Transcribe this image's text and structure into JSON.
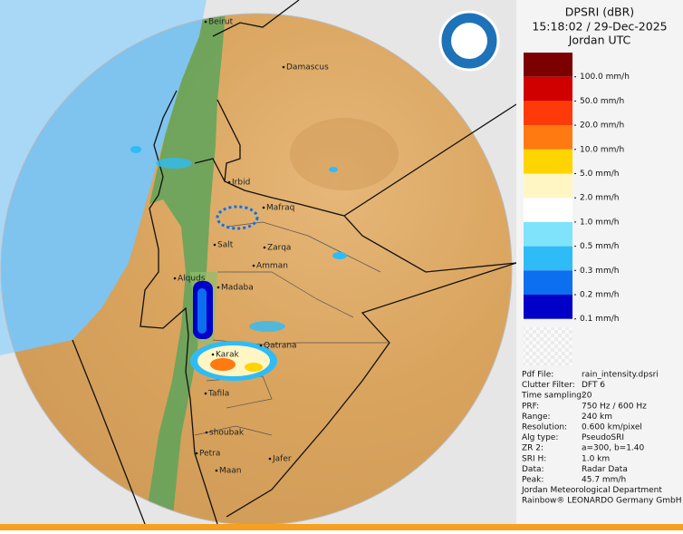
{
  "header": {
    "title": "DPSRI (dBR)",
    "timestamp": "15:18:02 / 29-Dec-2025",
    "region": "Jordan UTC"
  },
  "legend": [
    {
      "label": "100.0 mm/h",
      "color": "#7d0000"
    },
    {
      "label": "50.0 mm/h",
      "color": "#d00000"
    },
    {
      "label": "20.0 mm/h",
      "color": "#ff3a0a"
    },
    {
      "label": "10.0 mm/h",
      "color": "#ff7a10"
    },
    {
      "label": "5.0 mm/h",
      "color": "#ffd400"
    },
    {
      "label": "2.0 mm/h",
      "color": "#fff6c4"
    },
    {
      "label": "1.0 mm/h",
      "color": "#ffffff"
    },
    {
      "label": "0.5 mm/h",
      "color": "#7fe4fb"
    },
    {
      "label": "0.3 mm/h",
      "color": "#2fbcf6"
    },
    {
      "label": "0.2 mm/h",
      "color": "#0b6ff0"
    },
    {
      "label": "0.1 mm/h",
      "color": "#0000c8"
    }
  ],
  "info": [
    [
      "Pdf File:",
      "rain_intensity.dpsri"
    ],
    [
      "Clutter Filter:",
      "DFT 6"
    ],
    [
      "Time sampling:",
      "20"
    ],
    [
      "PRF:",
      "750 Hz / 600 Hz"
    ],
    [
      "Range:",
      "240 km"
    ],
    [
      "Resolution:",
      "0.600 km/pixel"
    ],
    [
      "Alg type:",
      "PseudoSRI"
    ],
    [
      "ZR 2:",
      "a=300, b=1.40"
    ],
    [
      "SRI H:",
      "1.0 km"
    ],
    [
      "Data:",
      "Radar Data"
    ],
    [
      "Peak:",
      "45.7 mm/h"
    ]
  ],
  "footer": [
    "Jordan Meteorological Department",
    "Rainbow® LEONARDO Germany GmbH"
  ],
  "cities": [
    "Beirut",
    "Damascus",
    "Irbid",
    "Mafraq",
    "Salt",
    "Zarqa",
    "Amman",
    "Alquds",
    "Madaba",
    "Qatrana",
    "Karak",
    "Tafila",
    "shoubak",
    "Petra",
    "Jafer",
    "Maan"
  ]
}
